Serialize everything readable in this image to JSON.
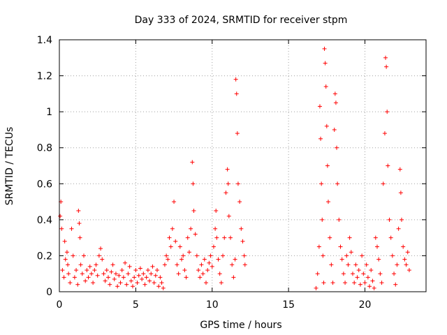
{
  "chart_data": {
    "type": "scatter",
    "title": "Day 333 of 2024, SRMTID for receiver stpm",
    "xlabel": "GPS time / hours",
    "ylabel": "SRMTID / TECUs",
    "xlim": [
      0,
      24
    ],
    "ylim": [
      0,
      1.4
    ],
    "xticks": [
      0,
      5,
      10,
      15,
      20
    ],
    "xtick_labels": [
      "0",
      "5",
      "10",
      "15",
      "20"
    ],
    "yticks": [
      0,
      0.2,
      0.4,
      0.6,
      0.8,
      1.0,
      1.2,
      1.4
    ],
    "ytick_labels": [
      "0",
      "0.2",
      "0.4",
      "0.6",
      "0.8",
      "1",
      "1.2",
      "1.4"
    ],
    "grid": true,
    "marker": "+",
    "series": [
      {
        "name": "stpm",
        "color": "#ff0000",
        "points": [
          [
            0.05,
            0.42
          ],
          [
            0.1,
            0.5
          ],
          [
            0.15,
            0.35
          ],
          [
            0.2,
            0.12
          ],
          [
            0.3,
            0.08
          ],
          [
            0.35,
            0.28
          ],
          [
            0.4,
            0.18
          ],
          [
            0.5,
            0.22
          ],
          [
            0.55,
            0.15
          ],
          [
            0.6,
            0.1
          ],
          [
            0.7,
            0.05
          ],
          [
            0.8,
            0.35
          ],
          [
            0.9,
            0.2
          ],
          [
            1.0,
            0.08
          ],
          [
            1.1,
            0.12
          ],
          [
            1.2,
            0.04
          ],
          [
            1.25,
            0.45
          ],
          [
            1.3,
            0.38
          ],
          [
            1.35,
            0.3
          ],
          [
            1.4,
            0.15
          ],
          [
            1.5,
            0.1
          ],
          [
            1.6,
            0.2
          ],
          [
            1.7,
            0.06
          ],
          [
            1.8,
            0.12
          ],
          [
            1.9,
            0.08
          ],
          [
            2.0,
            0.14
          ],
          [
            2.1,
            0.1
          ],
          [
            2.2,
            0.05
          ],
          [
            2.3,
            0.12
          ],
          [
            2.4,
            0.15
          ],
          [
            2.5,
            0.09
          ],
          [
            2.6,
            0.2
          ],
          [
            2.7,
            0.24
          ],
          [
            2.8,
            0.18
          ],
          [
            2.9,
            0.1
          ],
          [
            3.0,
            0.06
          ],
          [
            3.1,
            0.12
          ],
          [
            3.2,
            0.08
          ],
          [
            3.3,
            0.04
          ],
          [
            3.4,
            0.11
          ],
          [
            3.5,
            0.15
          ],
          [
            3.6,
            0.07
          ],
          [
            3.7,
            0.1
          ],
          [
            3.8,
            0.03
          ],
          [
            3.9,
            0.09
          ],
          [
            4.0,
            0.05
          ],
          [
            4.1,
            0.12
          ],
          [
            4.2,
            0.08
          ],
          [
            4.3,
            0.16
          ],
          [
            4.4,
            0.04
          ],
          [
            4.5,
            0.1
          ],
          [
            4.6,
            0.14
          ],
          [
            4.7,
            0.06
          ],
          [
            4.8,
            0.03
          ],
          [
            4.9,
            0.08
          ],
          [
            5.0,
            0.12
          ],
          [
            5.1,
            0.05
          ],
          [
            5.2,
            0.09
          ],
          [
            5.3,
            0.13
          ],
          [
            5.4,
            0.07
          ],
          [
            5.5,
            0.1
          ],
          [
            5.6,
            0.04
          ],
          [
            5.7,
            0.08
          ],
          [
            5.8,
            0.12
          ],
          [
            5.9,
            0.06
          ],
          [
            6.0,
            0.1
          ],
          [
            6.1,
            0.14
          ],
          [
            6.2,
            0.05
          ],
          [
            6.3,
            0.09
          ],
          [
            6.4,
            0.12
          ],
          [
            6.5,
            0.03
          ],
          [
            6.6,
            0.08
          ],
          [
            6.7,
            0.05
          ],
          [
            6.8,
            0.02
          ],
          [
            6.9,
            0.15
          ],
          [
            7.0,
            0.2
          ],
          [
            7.1,
            0.18
          ],
          [
            7.2,
            0.3
          ],
          [
            7.3,
            0.25
          ],
          [
            7.4,
            0.35
          ],
          [
            7.5,
            0.5
          ],
          [
            7.6,
            0.28
          ],
          [
            7.7,
            0.15
          ],
          [
            7.8,
            0.1
          ],
          [
            7.9,
            0.25
          ],
          [
            8.0,
            0.18
          ],
          [
            8.1,
            0.2
          ],
          [
            8.2,
            0.12
          ],
          [
            8.3,
            0.08
          ],
          [
            8.4,
            0.3
          ],
          [
            8.5,
            0.22
          ],
          [
            8.6,
            0.35
          ],
          [
            8.7,
            0.72
          ],
          [
            8.75,
            0.6
          ],
          [
            8.8,
            0.45
          ],
          [
            8.9,
            0.32
          ],
          [
            9.0,
            0.2
          ],
          [
            9.1,
            0.12
          ],
          [
            9.2,
            0.08
          ],
          [
            9.3,
            0.15
          ],
          [
            9.4,
            0.1
          ],
          [
            9.5,
            0.18
          ],
          [
            9.6,
            0.05
          ],
          [
            9.7,
            0.12
          ],
          [
            9.8,
            0.16
          ],
          [
            9.9,
            0.2
          ],
          [
            10.0,
            0.14
          ],
          [
            10.1,
            0.25
          ],
          [
            10.2,
            0.35
          ],
          [
            10.25,
            0.45
          ],
          [
            10.3,
            0.3
          ],
          [
            10.4,
            0.18
          ],
          [
            10.5,
            0.1
          ],
          [
            10.6,
            0.05
          ],
          [
            10.7,
            0.2
          ],
          [
            10.8,
            0.3
          ],
          [
            10.9,
            0.55
          ],
          [
            11.0,
            0.68
          ],
          [
            11.05,
            0.6
          ],
          [
            11.1,
            0.42
          ],
          [
            11.2,
            0.3
          ],
          [
            11.3,
            0.15
          ],
          [
            11.4,
            0.08
          ],
          [
            11.5,
            0.18
          ],
          [
            11.55,
            1.18
          ],
          [
            11.6,
            1.1
          ],
          [
            11.65,
            0.88
          ],
          [
            11.7,
            0.6
          ],
          [
            11.8,
            0.5
          ],
          [
            11.9,
            0.35
          ],
          [
            12.0,
            0.28
          ],
          [
            12.1,
            0.2
          ],
          [
            12.15,
            0.15
          ],
          [
            16.8,
            0.02
          ],
          [
            16.9,
            0.1
          ],
          [
            17.0,
            0.25
          ],
          [
            17.05,
            1.03
          ],
          [
            17.1,
            0.85
          ],
          [
            17.15,
            0.6
          ],
          [
            17.2,
            0.4
          ],
          [
            17.25,
            0.2
          ],
          [
            17.3,
            0.05
          ],
          [
            17.35,
            1.35
          ],
          [
            17.4,
            1.27
          ],
          [
            17.45,
            1.14
          ],
          [
            17.5,
            0.92
          ],
          [
            17.55,
            0.7
          ],
          [
            17.6,
            0.5
          ],
          [
            17.7,
            0.3
          ],
          [
            17.8,
            0.15
          ],
          [
            17.9,
            0.05
          ],
          [
            18.0,
            0.9
          ],
          [
            18.05,
            1.1
          ],
          [
            18.1,
            1.05
          ],
          [
            18.15,
            0.8
          ],
          [
            18.2,
            0.6
          ],
          [
            18.3,
            0.4
          ],
          [
            18.4,
            0.25
          ],
          [
            18.5,
            0.18
          ],
          [
            18.6,
            0.1
          ],
          [
            18.7,
            0.05
          ],
          [
            18.8,
            0.2
          ],
          [
            18.9,
            0.15
          ],
          [
            19.0,
            0.3
          ],
          [
            19.1,
            0.22
          ],
          [
            19.2,
            0.1
          ],
          [
            19.3,
            0.05
          ],
          [
            19.4,
            0.15
          ],
          [
            19.5,
            0.08
          ],
          [
            19.6,
            0.12
          ],
          [
            19.7,
            0.04
          ],
          [
            19.8,
            0.2
          ],
          [
            19.9,
            0.1
          ],
          [
            20.0,
            0.05
          ],
          [
            20.1,
            0.15
          ],
          [
            20.2,
            0.08
          ],
          [
            20.3,
            0.03
          ],
          [
            20.4,
            0.12
          ],
          [
            20.5,
            0.06
          ],
          [
            20.6,
            0.02
          ],
          [
            20.7,
            0.3
          ],
          [
            20.8,
            0.25
          ],
          [
            20.9,
            0.18
          ],
          [
            21.0,
            0.1
          ],
          [
            21.1,
            0.05
          ],
          [
            21.2,
            0.6
          ],
          [
            21.3,
            0.88
          ],
          [
            21.35,
            1.3
          ],
          [
            21.4,
            1.25
          ],
          [
            21.45,
            1.0
          ],
          [
            21.5,
            0.7
          ],
          [
            21.6,
            0.4
          ],
          [
            21.7,
            0.3
          ],
          [
            21.8,
            0.2
          ],
          [
            21.9,
            0.1
          ],
          [
            22.0,
            0.04
          ],
          [
            22.1,
            0.15
          ],
          [
            22.2,
            0.35
          ],
          [
            22.3,
            0.68
          ],
          [
            22.35,
            0.55
          ],
          [
            22.4,
            0.4
          ],
          [
            22.5,
            0.25
          ],
          [
            22.6,
            0.18
          ],
          [
            22.7,
            0.15
          ],
          [
            22.8,
            0.22
          ],
          [
            22.9,
            0.12
          ]
        ]
      }
    ]
  }
}
